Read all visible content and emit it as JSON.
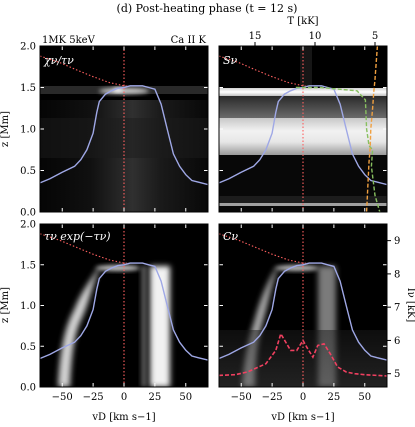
{
  "figure": {
    "title": "(d) Post-heating phase (t = 12 s)",
    "corner_left": "1MK 5keV",
    "corner_right": "Ca II K"
  },
  "axes": {
    "x_label": "vD [km s−1]",
    "y_label": "z [Mm]",
    "top_label": "T [kK]",
    "right_label": "Iν [kK]",
    "x_ticks": [
      "−50",
      "−25",
      "0",
      "25",
      "50"
    ],
    "y_ticks": [
      "0.0",
      "0.5",
      "1.0",
      "1.5",
      "2.0"
    ],
    "top_ticks": [
      "15",
      "10",
      "5"
    ],
    "right_ticks": [
      "5",
      "6",
      "7",
      "8",
      "9"
    ]
  },
  "panels": [
    {
      "id": "chi",
      "label": "χν/τν"
    },
    {
      "id": "S",
      "label": "Sν"
    },
    {
      "id": "tau",
      "label": "τν exp(−τν)"
    },
    {
      "id": "C",
      "label": "Cν"
    }
  ],
  "chart_data": {
    "type": "line",
    "title": "(d) Post-heating phase (t = 12 s)",
    "xlabel": "vD [km s−1]",
    "ylabel": "z [Mm]",
    "xlim": [
      -68,
      68
    ],
    "ylim": [
      0,
      2.0
    ],
    "top_axis": {
      "label": "T [kK]",
      "range": [
        18,
        4
      ],
      "ticks": [
        15,
        10,
        5
      ]
    },
    "right_axis": {
      "label": "Iν [kK]",
      "range": [
        4.6,
        9.5
      ],
      "ticks": [
        5,
        6,
        7,
        8,
        9
      ]
    },
    "colors": {
      "velocity": "#9fa8e6",
      "tau_line": "#ff6060",
      "S_line": "#f0a040",
      "B_line": "#88c060",
      "intensity": "#f04060"
    },
    "series": [
      {
        "panel": "all",
        "x": [
          -68,
          -60,
          -50,
          -40,
          -35,
          -30,
          -25,
          -22,
          -20,
          -15,
          -10,
          -5,
          0,
          5,
          10,
          15,
          20,
          25,
          30,
          35,
          40,
          45,
          50,
          55,
          60,
          68
        ],
        "y": [
          0.35,
          0.4,
          0.48,
          0.55,
          0.63,
          0.75,
          0.95,
          1.2,
          1.33,
          1.42,
          1.46,
          1.49,
          1.5,
          1.52,
          1.52,
          1.52,
          1.5,
          1.48,
          1.3,
          1.0,
          0.7,
          0.55,
          0.45,
          0.38,
          0.36,
          0.33
        ]
      },
      {
        "panel": "all",
        "x": [
          -68,
          -52,
          -38,
          -25,
          -12,
          0,
          2
        ],
        "y": [
          1.88,
          1.8,
          1.71,
          1.63,
          1.56,
          1.52,
          1.52
        ]
      },
      {
        "panel": "S",
        "x": [
          11.6,
          11.0,
          9.5,
          8.0,
          6.5,
          5.8,
          5.7,
          5.5,
          5.2,
          5.3,
          5.0,
          4.6
        ],
        "y": [
          1.5,
          1.5,
          1.5,
          1.48,
          1.46,
          1.35,
          1.0,
          0.8,
          0.75,
          0.55,
          0.2,
          0.0
        ]
      },
      {
        "panel": "S",
        "x": [
          4.8,
          4.9,
          5.0,
          5.1,
          5.2,
          5.35,
          5.4,
          5.5,
          5.7
        ],
        "y": [
          2.0,
          1.8,
          1.6,
          1.45,
          1.25,
          1.0,
          0.78,
          0.6,
          0.0
        ]
      },
      {
        "panel": "C",
        "x": [
          -68,
          -55,
          -45,
          -30,
          -22,
          -18,
          -10,
          -5,
          0,
          3,
          8,
          12,
          17,
          22,
          28,
          35,
          42,
          50,
          60,
          68
        ],
        "y": [
          4.95,
          4.97,
          5.05,
          5.3,
          5.7,
          6.2,
          5.7,
          5.7,
          6.0,
          5.8,
          5.5,
          5.85,
          5.9,
          5.6,
          5.2,
          5.05,
          5.0,
          4.97,
          4.95,
          4.93
        ]
      }
    ]
  }
}
